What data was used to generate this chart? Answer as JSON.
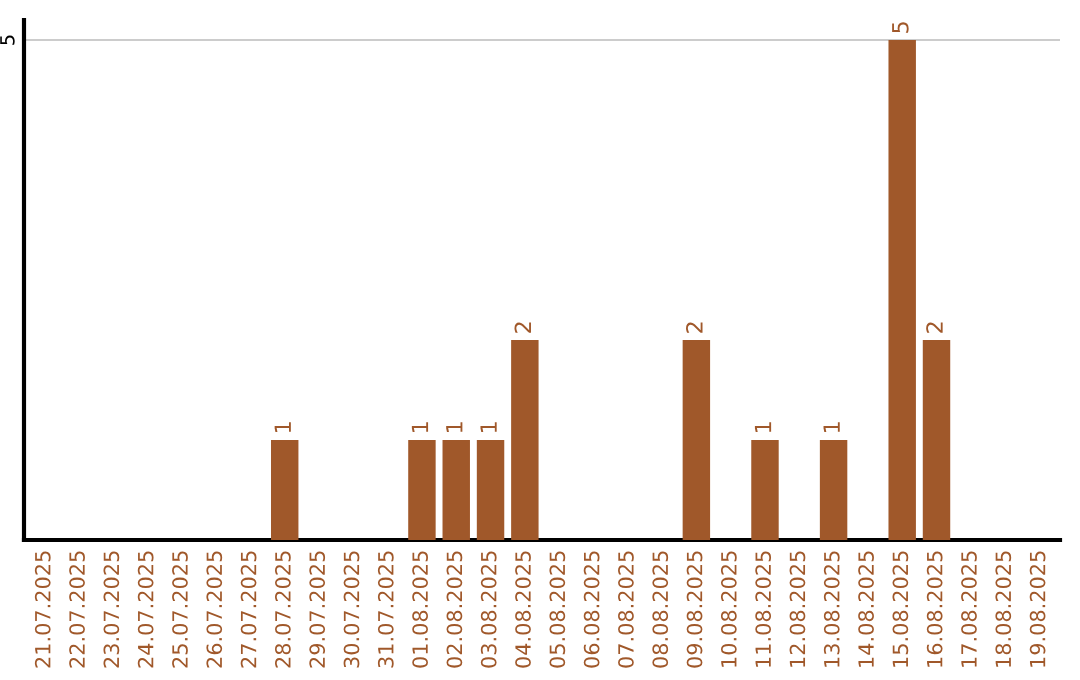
{
  "chart_data": {
    "type": "bar",
    "categories": [
      "21.07.2025",
      "22.07.2025",
      "23.07.2025",
      "24.07.2025",
      "25.07.2025",
      "26.07.2025",
      "27.07.2025",
      "28.07.2025",
      "29.07.2025",
      "30.07.2025",
      "31.07.2025",
      "01.08.2025",
      "02.08.2025",
      "03.08.2025",
      "04.08.2025",
      "05.08.2025",
      "06.08.2025",
      "07.08.2025",
      "08.08.2025",
      "09.08.2025",
      "10.08.2025",
      "11.08.2025",
      "12.08.2025",
      "13.08.2025",
      "14.08.2025",
      "15.08.2025",
      "16.08.2025",
      "17.08.2025",
      "18.08.2025",
      "19.08.2025"
    ],
    "values": [
      0,
      0,
      0,
      0,
      0,
      0,
      0,
      1,
      0,
      0,
      0,
      1,
      1,
      1,
      2,
      0,
      0,
      0,
      0,
      2,
      0,
      1,
      0,
      1,
      0,
      5,
      2,
      0,
      0,
      0
    ],
    "value_labels": [
      null,
      null,
      null,
      null,
      null,
      null,
      null,
      "1",
      null,
      null,
      null,
      "1",
      "1",
      "1",
      "2",
      null,
      null,
      null,
      null,
      "2",
      null,
      "1",
      null,
      "1",
      null,
      "5",
      "2",
      null,
      null,
      null
    ],
    "color": "#a0582a",
    "ylim": [
      0,
      5.2
    ],
    "yticks": [
      5
    ],
    "grid": "y"
  }
}
